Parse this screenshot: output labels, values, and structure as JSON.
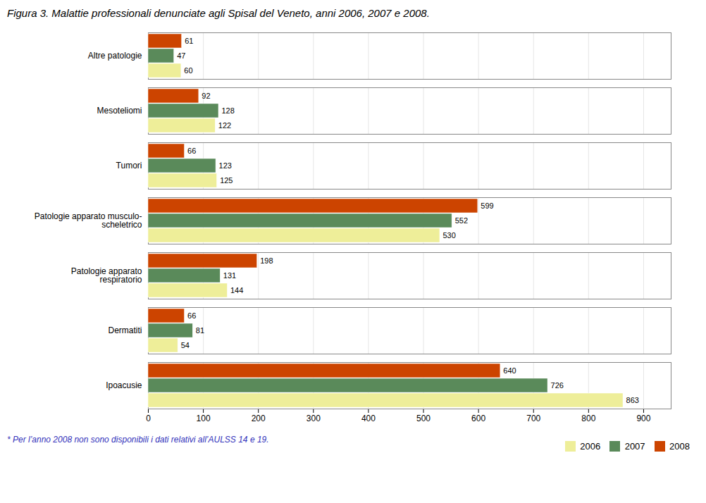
{
  "chart_data": {
    "type": "bar",
    "orientation": "horizontal",
    "title": "Figura 3. Malattie professionali denunciate agli Spisal del Veneto, anni 2006, 2007 e 2008.",
    "annotations": [
      "* Per l’anno 2008 non sono disponibili i dati relativi all’AULSS 14 e 19."
    ],
    "categories": [
      "Ipoacusie",
      "Dermatiti",
      "Patologie apparato\nrespiratorio",
      "Patologie apparato musculo-\nscheletrico",
      "Tumori",
      "Mesoteliomi",
      "Altre patologie"
    ],
    "series": [
      {
        "name": "2006",
        "color": "#EEEE99",
        "values": [
          863,
          54,
          144,
          530,
          125,
          122,
          60
        ]
      },
      {
        "name": "2007",
        "color": "#5A8A5A",
        "values": [
          726,
          81,
          131,
          552,
          123,
          128,
          47
        ]
      },
      {
        "name": "2008",
        "color": "#CC4400",
        "values": [
          640,
          66,
          198,
          599,
          66,
          92,
          61
        ]
      }
    ],
    "xlim": [
      0,
      950
    ],
    "xticks": [
      0,
      100,
      200,
      300,
      400,
      500,
      600,
      700,
      800,
      900
    ],
    "grid": true,
    "legend": "lower right",
    "data_labels": true
  }
}
